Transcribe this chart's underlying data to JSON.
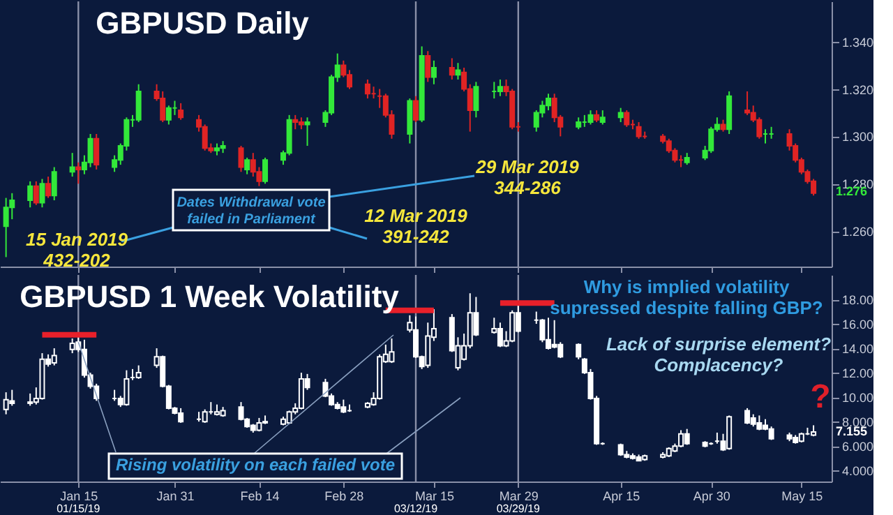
{
  "chart_data": [
    {
      "type": "candlestick",
      "title": "GBPUSD Daily",
      "tick_labels": "y",
      "x": [
        "2019-01-03",
        "2019-01-04",
        "2019-01-07",
        "2019-01-08",
        "2019-01-09",
        "2019-01-10",
        "2019-01-11",
        "2019-01-14",
        "2019-01-15",
        "2019-01-16",
        "2019-01-17",
        "2019-01-18",
        "2019-01-21",
        "2019-01-22",
        "2019-01-23",
        "2019-01-24",
        "2019-01-25",
        "2019-01-28",
        "2019-01-29",
        "2019-01-30",
        "2019-01-31",
        "2019-02-01",
        "2019-02-04",
        "2019-02-05",
        "2019-02-06",
        "2019-02-07",
        "2019-02-08",
        "2019-02-11",
        "2019-02-12",
        "2019-02-13",
        "2019-02-14",
        "2019-02-15",
        "2019-02-18",
        "2019-02-19",
        "2019-02-20",
        "2019-02-21",
        "2019-02-22",
        "2019-02-25",
        "2019-02-26",
        "2019-02-27",
        "2019-02-28",
        "2019-03-01",
        "2019-03-04",
        "2019-03-05",
        "2019-03-06",
        "2019-03-07",
        "2019-03-08",
        "2019-03-11",
        "2019-03-12",
        "2019-03-13",
        "2019-03-14",
        "2019-03-15",
        "2019-03-18",
        "2019-03-19",
        "2019-03-20",
        "2019-03-21",
        "2019-03-22",
        "2019-03-25",
        "2019-03-26",
        "2019-03-27",
        "2019-03-28",
        "2019-03-29",
        "2019-04-01",
        "2019-04-02",
        "2019-04-03",
        "2019-04-04",
        "2019-04-05",
        "2019-04-08",
        "2019-04-09",
        "2019-04-10",
        "2019-04-11",
        "2019-04-12",
        "2019-04-15",
        "2019-04-16",
        "2019-04-17",
        "2019-04-18",
        "2019-04-19",
        "2019-04-22",
        "2019-04-23",
        "2019-04-24",
        "2019-04-25",
        "2019-04-26",
        "2019-04-29",
        "2019-04-30",
        "2019-05-01",
        "2019-05-02",
        "2019-05-03",
        "2019-05-06",
        "2019-05-07",
        "2019-05-08",
        "2019-05-09",
        "2019-05-10",
        "2019-05-13",
        "2019-05-14",
        "2019-05-15",
        "2019-05-16",
        "2019-05-17"
      ],
      "ohlc": [
        [
          1.262,
          1.274,
          1.249,
          1.27
        ],
        [
          1.27,
          1.276,
          1.265,
          1.273
        ],
        [
          1.273,
          1.281,
          1.27,
          1.279
        ],
        [
          1.279,
          1.281,
          1.271,
          1.272
        ],
        [
          1.272,
          1.282,
          1.27,
          1.28
        ],
        [
          1.28,
          1.283,
          1.274,
          1.275
        ],
        [
          1.275,
          1.287,
          1.273,
          1.285
        ],
        [
          1.285,
          1.293,
          1.283,
          1.287
        ],
        [
          1.287,
          1.289,
          1.28,
          1.286
        ],
        [
          1.286,
          1.292,
          1.284,
          1.289
        ],
        [
          1.289,
          1.301,
          1.287,
          1.299
        ],
        [
          1.299,
          1.301,
          1.286,
          1.288
        ],
        [
          1.287,
          1.292,
          1.285,
          1.29
        ],
        [
          1.29,
          1.297,
          1.288,
          1.296
        ],
        [
          1.296,
          1.308,
          1.294,
          1.307
        ],
        [
          1.307,
          1.309,
          1.304,
          1.307
        ],
        [
          1.307,
          1.322,
          1.306,
          1.319
        ],
        [
          1.319,
          1.322,
          1.315,
          1.316
        ],
        [
          1.316,
          1.319,
          1.306,
          1.307
        ],
        [
          1.307,
          1.313,
          1.305,
          1.312
        ],
        [
          1.312,
          1.315,
          1.309,
          1.312
        ],
        [
          1.311,
          1.314,
          1.307,
          1.308
        ],
        [
          1.307,
          1.309,
          1.302,
          1.304
        ],
        [
          1.304,
          1.305,
          1.294,
          1.295
        ],
        [
          1.295,
          1.297,
          1.293,
          1.294
        ],
        [
          1.294,
          1.297,
          1.292,
          1.295
        ],
        [
          1.295,
          1.298,
          1.293,
          1.296
        ],
        [
          1.295,
          1.296,
          1.285,
          1.287
        ],
        [
          1.286,
          1.291,
          1.284,
          1.29
        ],
        [
          1.29,
          1.293,
          1.283,
          1.285
        ],
        [
          1.285,
          1.287,
          1.279,
          1.281
        ],
        [
          1.281,
          1.291,
          1.28,
          1.29
        ],
        [
          1.29,
          1.294,
          1.288,
          1.293
        ],
        [
          1.293,
          1.309,
          1.292,
          1.307
        ],
        [
          1.307,
          1.309,
          1.303,
          1.306
        ],
        [
          1.306,
          1.308,
          1.303,
          1.305
        ],
        [
          1.305,
          1.308,
          1.296,
          1.306
        ],
        [
          1.306,
          1.311,
          1.304,
          1.31
        ],
        [
          1.31,
          1.326,
          1.309,
          1.325
        ],
        [
          1.325,
          1.335,
          1.323,
          1.33
        ],
        [
          1.33,
          1.332,
          1.325,
          1.326
        ],
        [
          1.326,
          1.328,
          1.32,
          1.321
        ],
        [
          1.322,
          1.324,
          1.316,
          1.318
        ],
        [
          1.318,
          1.321,
          1.316,
          1.318
        ],
        [
          1.317,
          1.32,
          1.312,
          1.317
        ],
        [
          1.317,
          1.318,
          1.308,
          1.309
        ],
        [
          1.309,
          1.311,
          1.299,
          1.301
        ],
        [
          1.301,
          1.316,
          1.297,
          1.315
        ],
        [
          1.315,
          1.317,
          1.306,
          1.307
        ],
        [
          1.307,
          1.338,
          1.306,
          1.334
        ],
        [
          1.334,
          1.336,
          1.323,
          1.325
        ],
        [
          1.325,
          1.332,
          1.322,
          1.329
        ],
        [
          1.329,
          1.333,
          1.324,
          1.326
        ],
        [
          1.326,
          1.331,
          1.324,
          1.328
        ],
        [
          1.327,
          1.329,
          1.319,
          1.32
        ],
        [
          1.32,
          1.322,
          1.302,
          1.311
        ],
        [
          1.311,
          1.323,
          1.308,
          1.321
        ],
        [
          1.319,
          1.323,
          1.316,
          1.319
        ],
        [
          1.319,
          1.324,
          1.317,
          1.321
        ],
        [
          1.321,
          1.324,
          1.317,
          1.319
        ],
        [
          1.319,
          1.32,
          1.303,
          1.304
        ],
        [
          1.304,
          1.306,
          1.302,
          1.304
        ],
        [
          1.304,
          1.311,
          1.302,
          1.31
        ],
        [
          1.31,
          1.315,
          1.308,
          1.313
        ],
        [
          1.313,
          1.318,
          1.311,
          1.316
        ],
        [
          1.316,
          1.318,
          1.306,
          1.308
        ],
        [
          1.308,
          1.309,
          1.3,
          1.304
        ],
        [
          1.304,
          1.308,
          1.303,
          1.306
        ],
        [
          1.306,
          1.309,
          1.304,
          1.306
        ],
        [
          1.306,
          1.311,
          1.305,
          1.309
        ],
        [
          1.309,
          1.311,
          1.306,
          1.307
        ],
        [
          1.306,
          1.311,
          1.305,
          1.308
        ],
        [
          1.308,
          1.312,
          1.306,
          1.31
        ],
        [
          1.31,
          1.311,
          1.304,
          1.305
        ],
        [
          1.305,
          1.307,
          1.303,
          1.305
        ],
        [
          1.304,
          1.306,
          1.299,
          1.3
        ],
        [
          1.3,
          1.302,
          1.299,
          1.3
        ],
        [
          1.3,
          1.301,
          1.297,
          1.298
        ],
        [
          1.298,
          1.299,
          1.293,
          1.294
        ],
        [
          1.294,
          1.295,
          1.289,
          1.29
        ],
        [
          1.29,
          1.292,
          1.287,
          1.29
        ],
        [
          1.289,
          1.293,
          1.288,
          1.291
        ],
        [
          1.291,
          1.296,
          1.29,
          1.294
        ],
        [
          1.294,
          1.304,
          1.293,
          1.303
        ],
        [
          1.303,
          1.308,
          1.302,
          1.305
        ],
        [
          1.305,
          1.307,
          1.302,
          1.303
        ],
        [
          1.303,
          1.319,
          1.301,
          1.317
        ],
        [
          1.311,
          1.319,
          1.309,
          1.31
        ],
        [
          1.31,
          1.313,
          1.306,
          1.307
        ],
        [
          1.307,
          1.308,
          1.299,
          1.3
        ],
        [
          1.301,
          1.303,
          1.297,
          1.301
        ],
        [
          1.301,
          1.304,
          1.299,
          1.301
        ],
        [
          1.301,
          1.303,
          1.294,
          1.296
        ],
        [
          1.296,
          1.297,
          1.289,
          1.29
        ],
        [
          1.29,
          1.291,
          1.284,
          1.285
        ],
        [
          1.285,
          1.286,
          1.28,
          1.281
        ],
        [
          1.281,
          1.282,
          1.275,
          1.276
        ]
      ],
      "colors": [
        "#33e83a",
        "#33e83a",
        "#33e83a",
        "#e02424",
        "#33e83a",
        "#e02424",
        "#33e83a",
        "#33e83a",
        "#e02424",
        "#33e83a",
        "#33e83a",
        "#e02424",
        "#33e83a",
        "#33e83a",
        "#33e83a",
        "#33e83a",
        "#33e83a",
        "#e02424",
        "#e02424",
        "#33e83a",
        "#33e83a",
        "#e02424",
        "#e02424",
        "#e02424",
        "#e02424",
        "#33e83a",
        "#33e83a",
        "#e02424",
        "#33e83a",
        "#e02424",
        "#e02424",
        "#33e83a",
        "#33e83a",
        "#33e83a",
        "#e02424",
        "#e02424",
        "#33e83a",
        "#33e83a",
        "#33e83a",
        "#33e83a",
        "#e02424",
        "#e02424",
        "#e02424",
        "#e02424",
        "#e02424",
        "#e02424",
        "#e02424",
        "#33e83a",
        "#e02424",
        "#33e83a",
        "#e02424",
        "#33e83a",
        "#e02424",
        "#33e83a",
        "#e02424",
        "#e02424",
        "#33e83a",
        "#33e83a",
        "#33e83a",
        "#e02424",
        "#e02424",
        "#e02424",
        "#33e83a",
        "#33e83a",
        "#33e83a",
        "#e02424",
        "#e02424",
        "#33e83a",
        "#33e83a",
        "#33e83a",
        "#e02424",
        "#33e83a",
        "#33e83a",
        "#e02424",
        "#e02424",
        "#e02424",
        "#e02424",
        "#e02424",
        "#e02424",
        "#e02424",
        "#e02424",
        "#33e83a",
        "#33e83a",
        "#33e83a",
        "#33e83a",
        "#e02424",
        "#33e83a",
        "#e02424",
        "#e02424",
        "#e02424",
        "#33e83a",
        "#33e83a",
        "#e02424",
        "#e02424",
        "#e02424",
        "#e02424",
        "#e02424"
      ],
      "xlim": [
        "2019-01-02",
        "2019-05-20"
      ],
      "ylim": [
        1.245,
        1.357
      ],
      "yticks": [
        {
          "value": 1.26,
          "label": "1.260"
        },
        {
          "value": 1.28,
          "label": "1.280"
        },
        {
          "value": 1.3,
          "label": "1.300"
        },
        {
          "value": 1.32,
          "label": "1.320"
        },
        {
          "value": 1.34,
          "label": "1.340"
        }
      ],
      "ref_lines": [
        {
          "axis": "x",
          "value": "2019-01-15",
          "color": "#8a90a8"
        },
        {
          "axis": "x",
          "value": "2019-03-12",
          "color": "#8a90a8"
        },
        {
          "axis": "x",
          "value": "2019-03-29",
          "color": "#8a90a8"
        }
      ],
      "xticks": [
        {
          "value": "2019-01-15",
          "label": null
        },
        {
          "value": "2019-01-31",
          "label": null
        },
        {
          "value": "2019-02-14",
          "label": null
        },
        {
          "value": "2019-02-28",
          "label": null
        },
        {
          "value": "2019-03-15",
          "label": null
        },
        {
          "value": "2019-03-29",
          "label": null
        },
        {
          "value": "2019-04-15",
          "label": null
        },
        {
          "value": "2019-04-30",
          "label": null
        },
        {
          "value": "2019-05-15",
          "label": null
        }
      ],
      "annotations": [
        "Dates Withdrawal vote\nfailed in Parliament",
        "15 Jan 2019\n432-202",
        "12 Mar 2019\n391-242",
        "29 Mar 2019\n344-286",
        "1.276"
      ]
    },
    {
      "type": "candlestick",
      "title": "GBPUSD 1 Week Volatility",
      "x": [
        "2019-01-03",
        "2019-01-04",
        "2019-01-07",
        "2019-01-08",
        "2019-01-09",
        "2019-01-10",
        "2019-01-11",
        "2019-01-14",
        "2019-01-15",
        "2019-01-16",
        "2019-01-17",
        "2019-01-18",
        "2019-01-21",
        "2019-01-22",
        "2019-01-23",
        "2019-01-24",
        "2019-01-25",
        "2019-01-28",
        "2019-01-29",
        "2019-01-30",
        "2019-01-31",
        "2019-02-01",
        "2019-02-04",
        "2019-02-05",
        "2019-02-06",
        "2019-02-07",
        "2019-02-08",
        "2019-02-11",
        "2019-02-12",
        "2019-02-13",
        "2019-02-14",
        "2019-02-15",
        "2019-02-18",
        "2019-02-19",
        "2019-02-20",
        "2019-02-21",
        "2019-02-22",
        "2019-02-25",
        "2019-02-26",
        "2019-02-27",
        "2019-02-28",
        "2019-03-01",
        "2019-03-04",
        "2019-03-05",
        "2019-03-06",
        "2019-03-07",
        "2019-03-08",
        "2019-03-11",
        "2019-03-12",
        "2019-03-13",
        "2019-03-14",
        "2019-03-15",
        "2019-03-18",
        "2019-03-19",
        "2019-03-20",
        "2019-03-21",
        "2019-03-22",
        "2019-03-25",
        "2019-03-26",
        "2019-03-27",
        "2019-03-28",
        "2019-03-29",
        "2019-04-01",
        "2019-04-02",
        "2019-04-03",
        "2019-04-04",
        "2019-04-05",
        "2019-04-08",
        "2019-04-09",
        "2019-04-10",
        "2019-04-11",
        "2019-04-12",
        "2019-04-15",
        "2019-04-16",
        "2019-04-17",
        "2019-04-18",
        "2019-04-19",
        "2019-04-22",
        "2019-04-23",
        "2019-04-24",
        "2019-04-25",
        "2019-04-26",
        "2019-04-29",
        "2019-04-30",
        "2019-05-01",
        "2019-05-02",
        "2019-05-03",
        "2019-05-06",
        "2019-05-07",
        "2019-05-08",
        "2019-05-09",
        "2019-05-10",
        "2019-05-13",
        "2019-05-14",
        "2019-05-15",
        "2019-05-16",
        "2019-05-17"
      ],
      "ohlc": [
        [
          9.0,
          10.4,
          8.6,
          9.8
        ],
        [
          9.7,
          10.6,
          9.3,
          9.5
        ],
        [
          9.5,
          10.3,
          9.3,
          9.6
        ],
        [
          9.6,
          10.8,
          9.4,
          9.9
        ],
        [
          9.9,
          13.6,
          9.8,
          13.1
        ],
        [
          13.1,
          13.5,
          12.5,
          12.7
        ],
        [
          12.8,
          14.0,
          12.6,
          13.4
        ],
        [
          13.9,
          14.8,
          13.6,
          14.4
        ],
        [
          14.5,
          14.9,
          13.7,
          13.9
        ],
        [
          13.9,
          14.7,
          11.6,
          11.8
        ],
        [
          11.8,
          12.0,
          10.7,
          10.9
        ],
        [
          10.9,
          11.1,
          9.7,
          9.9
        ],
        [
          9.9,
          10.6,
          9.7,
          9.9
        ],
        [
          9.9,
          10.1,
          9.2,
          9.4
        ],
        [
          9.4,
          12.2,
          9.3,
          11.5
        ],
        [
          11.6,
          12.3,
          11.4,
          11.6
        ],
        [
          11.6,
          12.6,
          11.5,
          12.0
        ],
        [
          12.6,
          14.0,
          12.4,
          13.3
        ],
        [
          13.3,
          13.4,
          10.8,
          10.9
        ],
        [
          10.9,
          11.0,
          9.0,
          9.1
        ],
        [
          9.1,
          9.2,
          8.6,
          8.7
        ],
        [
          8.7,
          9.1,
          7.9,
          8.0
        ],
        [
          8.2,
          8.8,
          8.0,
          8.2
        ],
        [
          8.0,
          9.0,
          7.9,
          8.8
        ],
        [
          8.8,
          9.6,
          8.6,
          8.8
        ],
        [
          8.6,
          9.4,
          8.5,
          8.8
        ],
        [
          8.5,
          9.2,
          8.4,
          8.9
        ],
        [
          9.2,
          9.6,
          8.1,
          8.2
        ],
        [
          8.2,
          8.3,
          7.5,
          7.6
        ],
        [
          7.7,
          7.8,
          7.1,
          7.3
        ],
        [
          7.3,
          8.3,
          7.2,
          7.9
        ],
        [
          7.9,
          8.5,
          7.8,
          8.0
        ],
        [
          7.8,
          8.4,
          7.7,
          8.2
        ],
        [
          7.9,
          8.9,
          7.8,
          8.8
        ],
        [
          8.8,
          9.5,
          8.6,
          9.1
        ],
        [
          9.1,
          12.0,
          9.0,
          11.5
        ],
        [
          11.5,
          11.9,
          10.6,
          10.8
        ],
        [
          11.2,
          11.5,
          10.0,
          10.1
        ],
        [
          10.1,
          10.3,
          9.3,
          9.4
        ],
        [
          9.4,
          9.6,
          9.0,
          9.1
        ],
        [
          9.2,
          9.8,
          8.7,
          8.8
        ],
        [
          8.9,
          9.4,
          8.8,
          8.9
        ],
        [
          9.2,
          9.6,
          9.1,
          9.5
        ],
        [
          9.4,
          10.4,
          9.3,
          9.9
        ],
        [
          9.9,
          13.5,
          9.8,
          13.3
        ],
        [
          12.9,
          14.3,
          12.8,
          13.5
        ],
        [
          12.9,
          14.8,
          12.8,
          13.7
        ],
        [
          15.5,
          16.7,
          15.3,
          16.1
        ],
        [
          15.5,
          16.6,
          13.2,
          13.3
        ],
        [
          13.3,
          13.4,
          12.3,
          12.5
        ],
        [
          12.6,
          16.1,
          12.4,
          15.0
        ],
        [
          14.9,
          17.2,
          14.6,
          15.6
        ],
        [
          16.5,
          16.8,
          13.7,
          13.8
        ],
        [
          12.4,
          14.9,
          12.2,
          14.2
        ],
        [
          13.1,
          15.2,
          13.0,
          14.2
        ],
        [
          14.2,
          18.5,
          14.0,
          16.9
        ],
        [
          16.9,
          18.2,
          15.0,
          15.1
        ],
        [
          15.3,
          16.5,
          15.2,
          15.6
        ],
        [
          15.6,
          16.1,
          14.1,
          14.2
        ],
        [
          14.2,
          15.4,
          14.1,
          14.6
        ],
        [
          14.6,
          17.1,
          14.5,
          16.9
        ],
        [
          16.9,
          17.6,
          15.3,
          15.4
        ],
        [
          16.3,
          17.0,
          16.0,
          16.3
        ],
        [
          16.3,
          16.4,
          14.5,
          14.7
        ],
        [
          14.7,
          16.5,
          13.9,
          14.0
        ],
        [
          14.3,
          16.3,
          14.0,
          14.1
        ],
        [
          14.3,
          14.5,
          13.2,
          13.3
        ],
        [
          14.3,
          14.4,
          13.1,
          13.3
        ],
        [
          13.1,
          13.2,
          11.9,
          12.0
        ],
        [
          12.0,
          12.3,
          9.8,
          9.9
        ],
        [
          9.9,
          10.1,
          6.1,
          6.2
        ],
        [
          6.2,
          6.3,
          6.1,
          6.2
        ],
        [
          6.1,
          6.2,
          5.2,
          5.3
        ],
        [
          5.3,
          5.6,
          5.0,
          5.1
        ],
        [
          5.2,
          5.4,
          4.9,
          5.0
        ],
        [
          5.1,
          5.3,
          4.8,
          4.8
        ],
        [
          4.9,
          5.3,
          4.8,
          5.2
        ],
        [
          5.1,
          5.5,
          5.0,
          5.3
        ],
        [
          5.2,
          5.9,
          5.1,
          5.8
        ],
        [
          5.6,
          6.2,
          5.5,
          6.0
        ],
        [
          6.0,
          7.3,
          5.9,
          7.0
        ],
        [
          7.0,
          7.4,
          6.1,
          6.2
        ],
        [
          6.3,
          6.4,
          5.9,
          6.0
        ],
        [
          6.2,
          6.3,
          6.1,
          6.2
        ],
        [
          6.4,
          7.1,
          6.2,
          6.4
        ],
        [
          6.4,
          7.0,
          5.6,
          5.7
        ],
        [
          5.8,
          8.5,
          5.7,
          8.4
        ],
        [
          8.9,
          9.1,
          7.8,
          7.9
        ],
        [
          8.3,
          8.6,
          7.6,
          7.8
        ],
        [
          7.9,
          8.5,
          7.3,
          7.4
        ],
        [
          7.7,
          8.2,
          7.3,
          7.4
        ],
        [
          7.4,
          7.6,
          6.5,
          6.6
        ],
        [
          6.9,
          7.1,
          6.4,
          6.6
        ],
        [
          6.7,
          6.9,
          6.2,
          6.3
        ],
        [
          6.4,
          7.1,
          6.3,
          7.0
        ],
        [
          7.0,
          7.5,
          6.9,
          7.0
        ],
        [
          6.9,
          7.7,
          6.8,
          7.155
        ]
      ],
      "colors": [
        "#ffffff",
        "#ffffff",
        "#ffffff",
        "#ffffff",
        "#ffffff",
        "#ffffff",
        "#ffffff",
        "#ffffff",
        "#ffffff",
        "#ffffff",
        "#ffffff",
        "#ffffff",
        "#ffffff",
        "#ffffff",
        "#ffffff",
        "#ffffff",
        "#ffffff",
        "#ffffff",
        "#ffffff",
        "#ffffff",
        "#ffffff",
        "#ffffff",
        "#ffffff",
        "#ffffff",
        "#ffffff",
        "#ffffff",
        "#ffffff",
        "#ffffff",
        "#ffffff",
        "#ffffff",
        "#ffffff",
        "#ffffff",
        "#ffffff",
        "#ffffff",
        "#ffffff",
        "#ffffff",
        "#ffffff",
        "#ffffff",
        "#ffffff",
        "#ffffff",
        "#ffffff",
        "#ffffff",
        "#ffffff",
        "#ffffff",
        "#ffffff",
        "#ffffff",
        "#ffffff",
        "#ffffff",
        "#ffffff",
        "#ffffff",
        "#ffffff",
        "#ffffff",
        "#ffffff",
        "#ffffff",
        "#ffffff",
        "#ffffff",
        "#ffffff",
        "#ffffff",
        "#ffffff",
        "#ffffff",
        "#ffffff",
        "#ffffff",
        "#ffffff",
        "#ffffff",
        "#ffffff",
        "#ffffff",
        "#ffffff",
        "#ffffff",
        "#ffffff",
        "#ffffff",
        "#ffffff",
        "#ffffff",
        "#ffffff",
        "#ffffff",
        "#ffffff",
        "#ffffff",
        "#ffffff",
        "#ffffff",
        "#ffffff",
        "#ffffff",
        "#ffffff",
        "#ffffff",
        "#ffffff",
        "#ffffff",
        "#ffffff",
        "#ffffff",
        "#ffffff",
        "#ffffff",
        "#ffffff",
        "#ffffff",
        "#ffffff",
        "#ffffff",
        "#ffffff",
        "#ffffff",
        "#ffffff",
        "#ffffff",
        "#ffffff"
      ],
      "series": [
        {
          "type": "line",
          "color": "#e8202a",
          "x": [
            "2019-01-09",
            "2019-01-18",
            "2019-01-21",
            "2019-03-07",
            "2019-03-15",
            "2019-03-18",
            "2019-03-26",
            "2019-04-04"
          ],
          "values": [
            15.1,
            15.1,
            null,
            17.1,
            17.1,
            null,
            17.7,
            17.7
          ]
        }
      ],
      "xlim": [
        "2019-01-02",
        "2019-05-20"
      ],
      "ylim": [
        3.1,
        20
      ],
      "yticks": [
        {
          "value": 4,
          "label": "4.000"
        },
        {
          "value": 6,
          "label": "6.000"
        },
        {
          "value": 8,
          "label": "8.000"
        },
        {
          "value": 10,
          "label": "10.00"
        },
        {
          "value": 12,
          "label": "12.00"
        },
        {
          "value": 14,
          "label": "14.00"
        },
        {
          "value": 16,
          "label": "16.00"
        },
        {
          "value": 18,
          "label": "18.00"
        }
      ],
      "xticks": [
        {
          "value": "2019-01-15",
          "label": "Jan 15"
        },
        {
          "value": "2019-01-31",
          "label": "Jan 31"
        },
        {
          "value": "2019-02-14",
          "label": "Feb 14"
        },
        {
          "value": "2019-02-28",
          "label": "Feb 28"
        },
        {
          "value": "2019-03-15",
          "label": "Mar 15"
        },
        {
          "value": "2019-03-29",
          "label": "Mar 29"
        },
        {
          "value": "2019-04-15",
          "label": "Apr 15"
        },
        {
          "value": "2019-04-30",
          "label": "Apr 30"
        },
        {
          "value": "2019-05-15",
          "label": "May 15"
        }
      ],
      "ref_lines": [
        {
          "axis": "x",
          "value": "2019-01-15",
          "label": "01/15/19",
          "color": "#8a90a8"
        },
        {
          "axis": "x",
          "value": "2019-03-12",
          "label": "03/12/19",
          "color": "#8a90a8"
        },
        {
          "axis": "x",
          "value": "2019-03-29",
          "label": "03/29/19",
          "color": "#8a90a8"
        }
      ],
      "annotations": [
        {
          "text": "Rising volatility on each failed vote",
          "x": "2019-01-15",
          "y": 14.5
        },
        "Why is implied volatility\nsupressed despite falling GBP?",
        "Lack of surprise element?\nComplacency?",
        "?",
        "7.155"
      ]
    }
  ]
}
